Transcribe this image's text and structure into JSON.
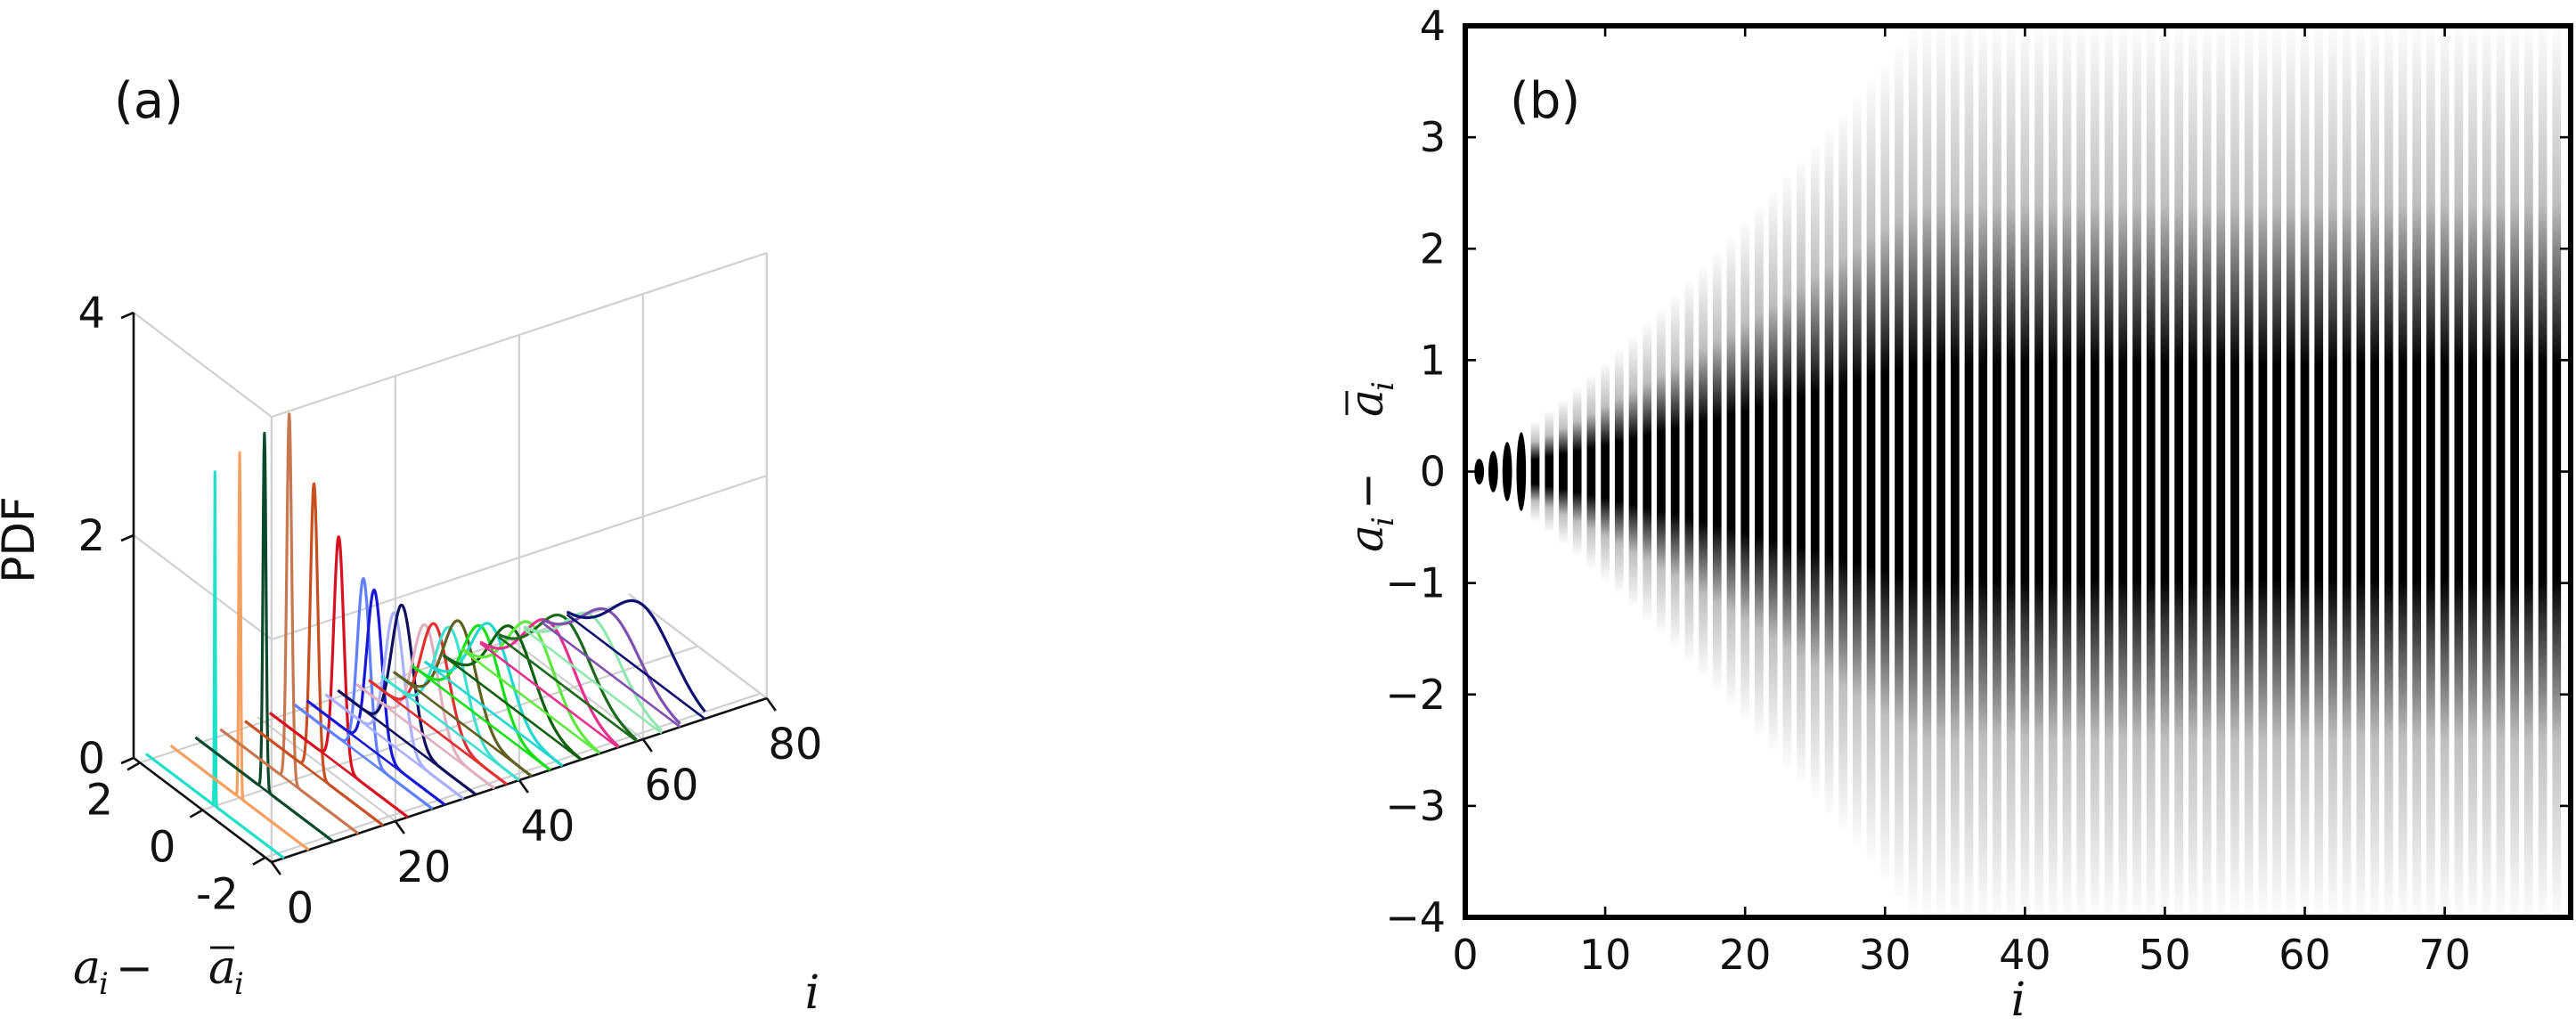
{
  "chart_data": [
    {
      "id": "a",
      "panel_label": "(a)",
      "type": "line",
      "projection": "3d-waterfall",
      "title": "",
      "zlabel": "PDF",
      "xlabel_plain": "a_i − ā_i",
      "xlabel_parts": [
        "a",
        "i",
        " − ",
        "a",
        "i"
      ],
      "ylabel": "i",
      "z_ticks": [
        "0",
        "2",
        "4"
      ],
      "z_tick_values": [
        0,
        2,
        4
      ],
      "x_ticks": [
        "2",
        "0",
        "-2"
      ],
      "x_tick_values": [
        2,
        0,
        -2
      ],
      "y_ticks": [
        "0",
        "20",
        "40",
        "60",
        "80"
      ],
      "y_tick_values": [
        0,
        20,
        40,
        60,
        80
      ],
      "zlim": [
        0,
        4
      ],
      "xlim": [
        -2.2,
        2.2
      ],
      "ylim": [
        0,
        80
      ],
      "series": [
        {
          "i": 2,
          "color": "#1fe0c8",
          "peak": 3.0,
          "sigma": 0.015,
          "center": 0.0
        },
        {
          "i": 6,
          "color": "#f5a060",
          "peak": 3.1,
          "sigma": 0.03,
          "center": 0.0
        },
        {
          "i": 10,
          "color": "#0a4a2a",
          "peak": 3.2,
          "sigma": 0.05,
          "center": 0.0
        },
        {
          "i": 14,
          "color": "#c87850",
          "peak": 3.3,
          "sigma": 0.08,
          "center": 0.0
        },
        {
          "i": 18,
          "color": "#c85020",
          "peak": 2.6,
          "sigma": 0.12,
          "center": 0.0
        },
        {
          "i": 22,
          "color": "#d81020",
          "peak": 2.05,
          "sigma": 0.16,
          "center": 0.0
        },
        {
          "i": 26,
          "color": "#6080ff",
          "peak": 1.6,
          "sigma": 0.2,
          "center": 0.0
        },
        {
          "i": 28,
          "color": "#1818d8",
          "peak": 1.45,
          "sigma": 0.24,
          "center": 0.05
        },
        {
          "i": 31,
          "color": "#a8b0ff",
          "peak": 1.2,
          "sigma": 0.3,
          "center": 0.0
        },
        {
          "i": 33,
          "color": "#101060",
          "peak": 1.2,
          "sigma": 0.34,
          "center": 0.15
        },
        {
          "i": 36,
          "color": "#e0b0c0",
          "peak": 1.0,
          "sigma": 0.4,
          "center": 0.0
        },
        {
          "i": 38,
          "color": "#e03030",
          "peak": 0.95,
          "sigma": 0.44,
          "center": 0.1
        },
        {
          "i": 40,
          "color": "#40e0d0",
          "peak": 0.9,
          "sigma": 0.48,
          "center": 0.0
        },
        {
          "i": 42,
          "color": "#606020",
          "peak": 0.9,
          "sigma": 0.52,
          "center": 0.1
        },
        {
          "i": 45,
          "color": "#18e018",
          "peak": 0.82,
          "sigma": 0.58,
          "center": 0.0
        },
        {
          "i": 47,
          "color": "#20d8d0",
          "peak": 0.78,
          "sigma": 0.62,
          "center": 0.1
        },
        {
          "i": 50,
          "color": "#106010",
          "peak": 0.72,
          "sigma": 0.68,
          "center": 0.0
        },
        {
          "i": 53,
          "color": "#60e840",
          "peak": 0.7,
          "sigma": 0.72,
          "center": 0.0
        },
        {
          "i": 56,
          "color": "#e83090",
          "peak": 0.66,
          "sigma": 0.78,
          "center": 0.0
        },
        {
          "i": 59,
          "color": "#1c6a1c",
          "peak": 0.62,
          "sigma": 0.82,
          "center": 0.1
        },
        {
          "i": 63,
          "color": "#90e8b0",
          "peak": 0.58,
          "sigma": 0.86,
          "center": 0.0
        },
        {
          "i": 66,
          "color": "#8050b0",
          "peak": 0.56,
          "sigma": 0.9,
          "center": 0.0
        },
        {
          "i": 70,
          "color": "#101070",
          "peak": 0.6,
          "sigma": 0.95,
          "center": -0.2
        }
      ]
    },
    {
      "id": "b",
      "panel_label": "(b)",
      "type": "heatmap",
      "title": "",
      "xlabel": "i",
      "ylabel_parts": [
        "a",
        "i",
        " − ",
        "a",
        "i"
      ],
      "x_ticks": [
        "0",
        "10",
        "20",
        "30",
        "40",
        "50",
        "60",
        "70"
      ],
      "x_tick_values": [
        0,
        10,
        20,
        30,
        40,
        50,
        60,
        70
      ],
      "y_ticks": [
        "4",
        "3",
        "2",
        "1",
        "0",
        "−1",
        "−2",
        "−3",
        "−4"
      ],
      "y_tick_values": [
        4,
        3,
        2,
        1,
        0,
        -1,
        -2,
        -3,
        -4
      ],
      "xlim": [
        0,
        79
      ],
      "ylim": [
        -4,
        4
      ],
      "colormap": "gray_r",
      "columns": {
        "i_start": 1,
        "i_end": 78,
        "width_sd_at_i1": 0.02,
        "width_sd_growth": 0.016,
        "width_sd_power": 1.25
      }
    }
  ]
}
